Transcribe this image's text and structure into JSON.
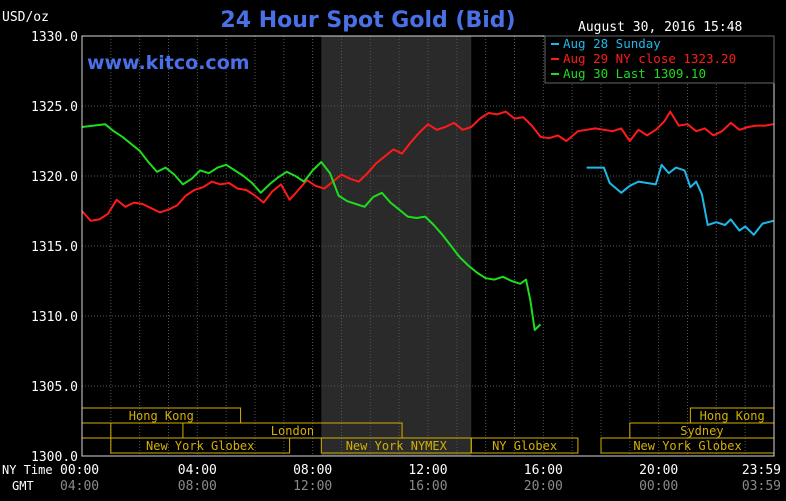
{
  "header": {
    "title": "24 Hour Spot Gold (Bid)",
    "unit": "USD/oz",
    "timestamp": "August 30, 2016 15:48",
    "brand": "www.kitco.com"
  },
  "colors": {
    "background": "#000000",
    "text": "#ffffff",
    "title": "#4a70e8",
    "grid": "#555555",
    "session_shade": "#2a2a2a",
    "session_box": "#d4b000",
    "series_aug28": "#1eb8e8",
    "series_aug29": "#ff1a1a",
    "series_aug30": "#1edc1e"
  },
  "chart_data": {
    "type": "line",
    "title": "24 Hour Spot Gold (Bid)",
    "ylabel": "USD/oz",
    "xlabel": "",
    "ylim": [
      1300,
      1330
    ],
    "xlim_hours": [
      0,
      24
    ],
    "grid": true,
    "legend_position": "top-right",
    "y_ticks": [
      "1300.0",
      "1305.0",
      "1310.0",
      "1315.0",
      "1320.0",
      "1325.0",
      "1330.0"
    ],
    "x_ticks_ny": [
      "00:00",
      "04:00",
      "08:00",
      "12:00",
      "16:00",
      "20:00",
      "23:59"
    ],
    "x_ticks_gmt": [
      "04:00",
      "08:00",
      "12:00",
      "16:00",
      "20:00",
      "00:00",
      "03:59"
    ],
    "x_ticks_hours": [
      0,
      4,
      8,
      12,
      16,
      20,
      23.983
    ],
    "row_labels": [
      "NY Time",
      "GMT"
    ],
    "shaded_hours": [
      8.3,
      13.5
    ],
    "series": [
      {
        "name": "Aug 28 Sunday",
        "legend_label": "Aug 28 Sunday",
        "color_key": "series_aug28",
        "x": [
          17.5,
          18.1,
          18.3,
          18.7,
          19.0,
          19.3,
          19.6,
          19.9,
          20.1,
          20.35,
          20.6,
          20.9,
          21.1,
          21.3,
          21.5,
          21.7,
          22.0,
          22.3,
          22.5,
          22.8,
          23.0,
          23.3,
          23.6,
          23.98
        ],
        "y": [
          1320.6,
          1320.6,
          1319.5,
          1318.8,
          1319.3,
          1319.6,
          1319.5,
          1319.4,
          1320.8,
          1320.2,
          1320.6,
          1320.4,
          1319.2,
          1319.6,
          1318.7,
          1316.5,
          1316.7,
          1316.5,
          1316.9,
          1316.1,
          1316.4,
          1315.8,
          1316.6,
          1316.8
        ]
      },
      {
        "name": "Aug 29 NY close 1323.20",
        "legend_label": "Aug 29 NY close 1323.20",
        "color_key": "series_aug29",
        "x": [
          0.0,
          0.3,
          0.6,
          0.9,
          1.2,
          1.5,
          1.8,
          2.1,
          2.4,
          2.7,
          3.0,
          3.3,
          3.6,
          3.9,
          4.2,
          4.5,
          4.8,
          5.1,
          5.4,
          5.7,
          6.0,
          6.3,
          6.6,
          6.9,
          7.2,
          7.5,
          7.8,
          8.1,
          8.4,
          8.7,
          9.0,
          9.3,
          9.6,
          9.9,
          10.2,
          10.5,
          10.8,
          11.1,
          11.4,
          11.7,
          12.0,
          12.3,
          12.6,
          12.9,
          13.2,
          13.5,
          13.8,
          14.1,
          14.4,
          14.7,
          15.0,
          15.3,
          15.6,
          15.9,
          16.2,
          16.5,
          16.8,
          17.2,
          17.5,
          17.8,
          18.1,
          18.4,
          18.7,
          19.0,
          19.3,
          19.6,
          19.9,
          20.2,
          20.4,
          20.7,
          21.0,
          21.3,
          21.6,
          21.9,
          22.2,
          22.5,
          22.8,
          23.1,
          23.4,
          23.7,
          23.98
        ],
        "y": [
          1317.5,
          1316.8,
          1316.9,
          1317.3,
          1318.3,
          1317.8,
          1318.1,
          1318.0,
          1317.7,
          1317.4,
          1317.6,
          1317.9,
          1318.6,
          1319.0,
          1319.2,
          1319.6,
          1319.4,
          1319.5,
          1319.1,
          1319.0,
          1318.6,
          1318.1,
          1318.9,
          1319.4,
          1318.3,
          1319.0,
          1319.7,
          1319.3,
          1319.1,
          1319.6,
          1320.1,
          1319.8,
          1319.6,
          1320.2,
          1320.9,
          1321.4,
          1321.9,
          1321.6,
          1322.4,
          1323.1,
          1323.7,
          1323.3,
          1323.5,
          1323.8,
          1323.3,
          1323.5,
          1324.1,
          1324.5,
          1324.4,
          1324.6,
          1324.1,
          1324.2,
          1323.6,
          1322.8,
          1322.7,
          1322.9,
          1322.5,
          1323.2,
          1323.3,
          1323.4,
          1323.3,
          1323.2,
          1323.4,
          1322.5,
          1323.3,
          1322.9,
          1323.3,
          1323.9,
          1324.6,
          1323.6,
          1323.7,
          1323.2,
          1323.4,
          1322.9,
          1323.2,
          1323.8,
          1323.3,
          1323.5,
          1323.6,
          1323.6,
          1323.7
        ]
      },
      {
        "name": "Aug 30 Last 1309.10",
        "legend_label": "Aug 30 Last 1309.10",
        "color_key": "series_aug30",
        "x": [
          0.0,
          0.4,
          0.8,
          1.1,
          1.4,
          1.7,
          2.0,
          2.3,
          2.6,
          2.9,
          3.2,
          3.5,
          3.8,
          4.1,
          4.4,
          4.7,
          5.0,
          5.3,
          5.6,
          5.9,
          6.2,
          6.5,
          6.8,
          7.1,
          7.4,
          7.7,
          8.0,
          8.3,
          8.6,
          8.9,
          9.2,
          9.5,
          9.8,
          10.1,
          10.4,
          10.7,
          11.0,
          11.3,
          11.6,
          11.9,
          12.2,
          12.5,
          12.8,
          13.1,
          13.4,
          13.7,
          14.0,
          14.3,
          14.6,
          14.9,
          15.2,
          15.4,
          15.55,
          15.7,
          15.9
        ],
        "y": [
          1323.5,
          1323.6,
          1323.7,
          1323.2,
          1322.8,
          1322.3,
          1321.8,
          1321.0,
          1320.3,
          1320.6,
          1320.1,
          1319.4,
          1319.8,
          1320.4,
          1320.2,
          1320.6,
          1320.8,
          1320.4,
          1320.0,
          1319.5,
          1318.8,
          1319.4,
          1319.9,
          1320.3,
          1320.0,
          1319.6,
          1320.4,
          1321.0,
          1320.2,
          1318.6,
          1318.2,
          1318.0,
          1317.8,
          1318.5,
          1318.8,
          1318.1,
          1317.6,
          1317.1,
          1317.0,
          1317.1,
          1316.5,
          1315.8,
          1315.0,
          1314.2,
          1313.6,
          1313.1,
          1312.7,
          1312.6,
          1312.8,
          1312.5,
          1312.3,
          1312.6,
          1311.1,
          1309.0,
          1309.4
        ]
      }
    ],
    "sessions": [
      {
        "label": "Hong Kong",
        "start": 0.0,
        "end": 5.5,
        "row": 0
      },
      {
        "label": "",
        "start": 0.0,
        "end": 1.0,
        "row": 1
      },
      {
        "label": "London",
        "start": 3.5,
        "end": 11.1,
        "row": 1
      },
      {
        "label": "New York Globex",
        "start": 1.0,
        "end": 7.2,
        "row": 2
      },
      {
        "label": "New York NYMEX",
        "start": 8.3,
        "end": 13.5,
        "row": 2
      },
      {
        "label": "NY Globex",
        "start": 13.5,
        "end": 17.2,
        "row": 2
      },
      {
        "label": "Hong Kong",
        "start": 21.1,
        "end": 24.0,
        "row": 0
      },
      {
        "label": "Sydney",
        "start": 19.0,
        "end": 24.0,
        "row": 1
      },
      {
        "label": "New York Globex",
        "start": 18.0,
        "end": 24.0,
        "row": 2
      }
    ]
  }
}
